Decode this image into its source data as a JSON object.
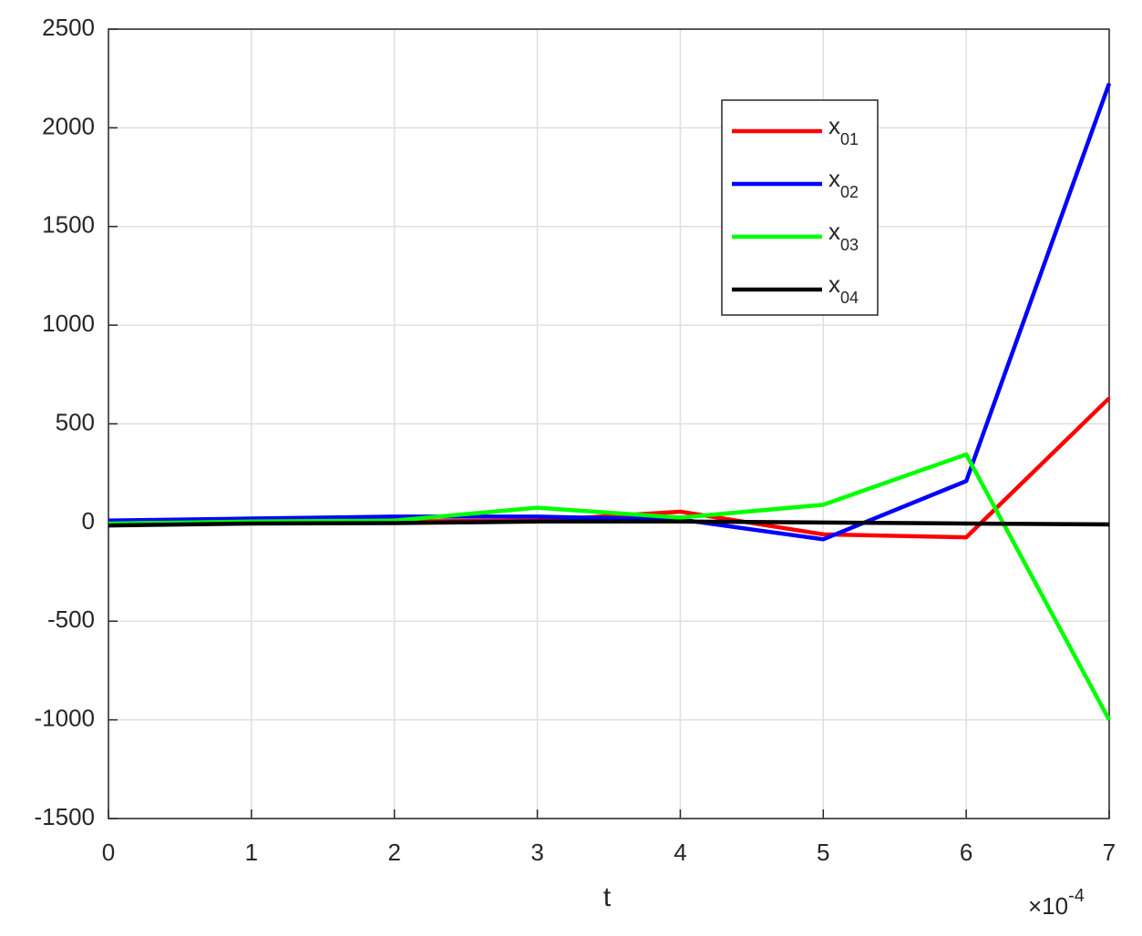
{
  "chart_data": {
    "type": "line",
    "x_label": "t",
    "x_multiplier": {
      "base": "×10",
      "exponent": "-4"
    },
    "x": [
      0,
      1,
      2,
      3,
      4,
      5,
      6,
      7
    ],
    "series": [
      {
        "name": "x",
        "name_subscript": "01",
        "color": "#ff0000",
        "values": [
          0,
          5,
          5,
          10,
          55,
          -60,
          -75,
          630
        ]
      },
      {
        "name": "x",
        "name_subscript": "02",
        "color": "#0000ff",
        "values": [
          10,
          20,
          30,
          30,
          15,
          -85,
          210,
          2225
        ]
      },
      {
        "name": "x",
        "name_subscript": "03",
        "color": "#00ff00",
        "values": [
          -5,
          5,
          10,
          75,
          25,
          90,
          345,
          -1000
        ]
      },
      {
        "name": "x",
        "name_subscript": "04",
        "color": "#000000",
        "values": [
          -15,
          -5,
          -3,
          5,
          5,
          0,
          -5,
          -10
        ]
      }
    ],
    "xlim": [
      0,
      7
    ],
    "xticks": [
      0,
      1,
      2,
      3,
      4,
      5,
      6,
      7
    ],
    "ylim": [
      -1500,
      2500
    ],
    "yticks": [
      -1500,
      -1000,
      -500,
      0,
      500,
      1000,
      1500,
      2000,
      2500
    ],
    "grid": true,
    "legend": "upper right"
  }
}
